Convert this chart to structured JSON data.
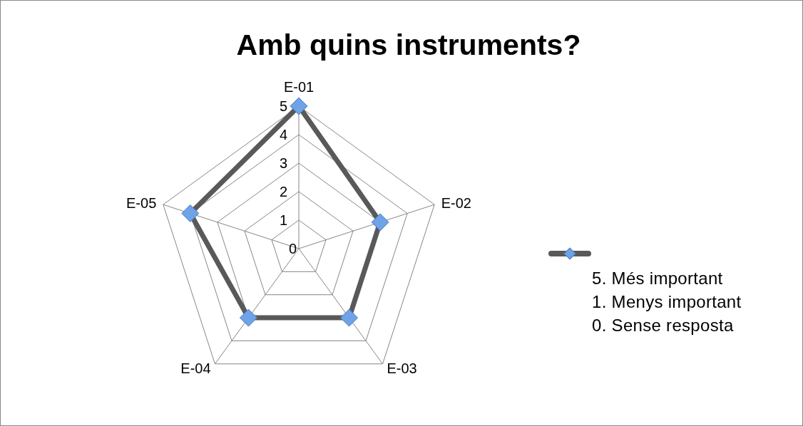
{
  "chart_data": {
    "type": "radar",
    "title": "Amb quins instruments?",
    "categories": [
      "E-01",
      "E-02",
      "E-03",
      "E-04",
      "E-05"
    ],
    "series": [
      {
        "color": "#595959",
        "values": [
          5,
          3,
          3,
          3,
          4
        ]
      }
    ],
    "ylim": [
      0,
      5
    ],
    "yticks": [
      0,
      1,
      2,
      3,
      4,
      5
    ],
    "grid": true,
    "marker": "diamond",
    "annotations": [
      "5. Més important",
      "1. Menys important",
      "0. Sense resposta"
    ]
  }
}
